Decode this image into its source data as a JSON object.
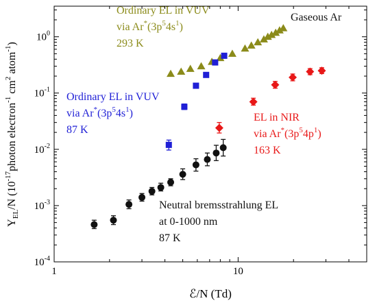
{
  "chart_data": {
    "type": "scatter",
    "x_scale": "log",
    "y_scale": "log",
    "xlim": [
      1,
      50
    ],
    "ylim": [
      0.0001,
      3.5
    ],
    "xlabel": "ℰ/N (Td)",
    "ylabel": {
      "main": "Y",
      "sub": "EL",
      "rest1": "/N (10",
      "sup1": "-17",
      "rest2": "photon electron",
      "sup2": "-1",
      "rest3": " cm",
      "sup3": "2",
      "rest4": " atom",
      "sup4": "-1",
      "rest5": ")"
    },
    "x_ticks": [
      {
        "value": 1,
        "label": "1"
      },
      {
        "value": 10,
        "label": "10"
      }
    ],
    "y_ticks": [
      {
        "value": 0.0001,
        "base": "10",
        "exp": "-4"
      },
      {
        "value": 0.001,
        "base": "10",
        "exp": "-3"
      },
      {
        "value": 0.01,
        "base": "10",
        "exp": "-2"
      },
      {
        "value": 0.1,
        "base": "10",
        "exp": "-1"
      },
      {
        "value": 1,
        "base": "10",
        "exp": "0"
      }
    ],
    "series": [
      {
        "marker": "triangle",
        "color": "#8b8b1a",
        "points": [
          {
            "x": 4.3,
            "y": 0.22
          },
          {
            "x": 4.9,
            "y": 0.24
          },
          {
            "x": 5.5,
            "y": 0.27
          },
          {
            "x": 6.3,
            "y": 0.3
          },
          {
            "x": 7.2,
            "y": 0.36
          },
          {
            "x": 8.0,
            "y": 0.42
          },
          {
            "x": 9.3,
            "y": 0.5
          },
          {
            "x": 10.9,
            "y": 0.62
          },
          {
            "x": 11.8,
            "y": 0.7
          },
          {
            "x": 12.8,
            "y": 0.8
          },
          {
            "x": 13.8,
            "y": 0.9
          },
          {
            "x": 14.5,
            "y": 1.0
          },
          {
            "x": 15.2,
            "y": 1.08
          },
          {
            "x": 16.0,
            "y": 1.18
          },
          {
            "x": 16.8,
            "y": 1.3
          },
          {
            "x": 17.6,
            "y": 1.42
          }
        ]
      },
      {
        "marker": "square",
        "color": "#1f1fd6",
        "points": [
          {
            "x": 4.2,
            "y": 0.012,
            "lo": 0.0097,
            "hi": 0.0146
          },
          {
            "x": 5.1,
            "y": 0.057,
            "lo": 0.051,
            "hi": 0.064
          },
          {
            "x": 5.9,
            "y": 0.135
          },
          {
            "x": 6.7,
            "y": 0.21
          },
          {
            "x": 7.5,
            "y": 0.35
          },
          {
            "x": 8.4,
            "y": 0.46
          }
        ]
      },
      {
        "marker": "diamond",
        "color": "#e81818",
        "points": [
          {
            "x": 7.9,
            "y": 0.024,
            "lo": 0.0195,
            "hi": 0.03
          },
          {
            "x": 12.1,
            "y": 0.07,
            "lo": 0.061,
            "hi": 0.081
          },
          {
            "x": 15.9,
            "y": 0.14,
            "lo": 0.122,
            "hi": 0.161
          },
          {
            "x": 19.8,
            "y": 0.19,
            "lo": 0.165,
            "hi": 0.218
          },
          {
            "x": 24.6,
            "y": 0.24,
            "lo": 0.212,
            "hi": 0.272
          },
          {
            "x": 28.5,
            "y": 0.25,
            "lo": 0.222,
            "hi": 0.282
          }
        ]
      },
      {
        "marker": "circle",
        "color": "#111111",
        "points": [
          {
            "x": 1.65,
            "y": 0.00046,
            "lo": 0.00039,
            "hi": 0.00055
          },
          {
            "x": 2.1,
            "y": 0.00055,
            "lo": 0.00046,
            "hi": 0.00066
          },
          {
            "x": 2.55,
            "y": 0.00105,
            "lo": 0.00088,
            "hi": 0.00126
          },
          {
            "x": 3.0,
            "y": 0.0014,
            "lo": 0.0012,
            "hi": 0.00164
          },
          {
            "x": 3.4,
            "y": 0.0018,
            "lo": 0.00155,
            "hi": 0.0021
          },
          {
            "x": 3.8,
            "y": 0.0021,
            "lo": 0.00182,
            "hi": 0.0025
          },
          {
            "x": 4.3,
            "y": 0.0026,
            "lo": 0.00225,
            "hi": 0.003
          },
          {
            "x": 5.0,
            "y": 0.0036,
            "lo": 0.0029,
            "hi": 0.0045
          },
          {
            "x": 5.9,
            "y": 0.0053,
            "lo": 0.0041,
            "hi": 0.0068
          },
          {
            "x": 6.8,
            "y": 0.0066,
            "lo": 0.0051,
            "hi": 0.0086
          },
          {
            "x": 7.6,
            "y": 0.0086,
            "lo": 0.0063,
            "hi": 0.0118
          },
          {
            "x": 8.3,
            "y": 0.0107,
            "lo": 0.0076,
            "hi": 0.015
          }
        ]
      }
    ],
    "annotations": [
      {
        "color": "#8b8b1a",
        "lines": [
          {
            "runs": [
              {
                "t": "Ordinary EL in VUV"
              }
            ]
          },
          {
            "runs": [
              {
                "t": "via Ar"
              },
              {
                "t": "*",
                "sup": true
              },
              {
                "t": "(3p"
              },
              {
                "t": "5",
                "sup": true
              },
              {
                "t": "4s"
              },
              {
                "t": "1",
                "sup": true
              },
              {
                "t": ")"
              }
            ]
          },
          {
            "runs": [
              {
                "t": "293 K"
              }
            ]
          }
        ]
      },
      {
        "color": "#1f1fd6",
        "lines": [
          {
            "runs": [
              {
                "t": "Ordinary EL in VUV"
              }
            ]
          },
          {
            "runs": [
              {
                "t": "via Ar"
              },
              {
                "t": "*",
                "sup": true
              },
              {
                "t": "(3p"
              },
              {
                "t": "5",
                "sup": true
              },
              {
                "t": "4s"
              },
              {
                "t": "1",
                "sup": true
              },
              {
                "t": ")"
              }
            ]
          },
          {
            "runs": [
              {
                "t": "87 K"
              }
            ]
          }
        ]
      },
      {
        "color": "#e81818",
        "lines": [
          {
            "runs": [
              {
                "t": "EL in NIR"
              }
            ]
          },
          {
            "runs": [
              {
                "t": "via Ar"
              },
              {
                "t": "*",
                "sup": true
              },
              {
                "t": "(3p"
              },
              {
                "t": "5",
                "sup": true
              },
              {
                "t": "4p"
              },
              {
                "t": "1",
                "sup": true
              },
              {
                "t": ")"
              }
            ]
          },
          {
            "runs": [
              {
                "t": "163 K"
              }
            ]
          }
        ]
      },
      {
        "color": "#111111",
        "lines": [
          {
            "runs": [
              {
                "t": "Neutral bremsstrahlung EL"
              }
            ]
          },
          {
            "runs": [
              {
                "t": "at 0-1000 nm"
              }
            ]
          },
          {
            "runs": [
              {
                "t": "87 K"
              }
            ]
          }
        ]
      },
      {
        "color": "#111111",
        "lines": [
          {
            "runs": [
              {
                "t": "Gaseous Ar"
              }
            ]
          }
        ]
      }
    ]
  }
}
